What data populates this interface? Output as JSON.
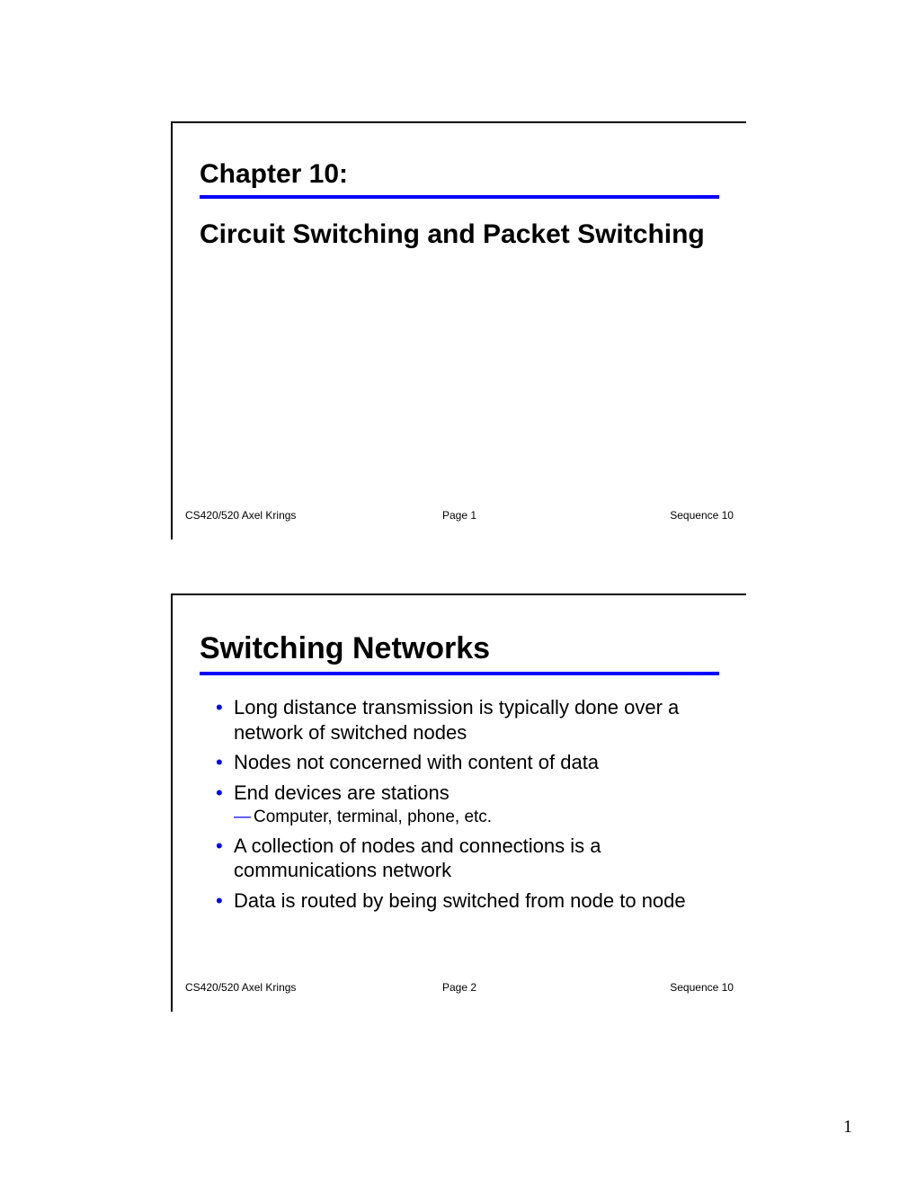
{
  "colors": {
    "rule": "#0000ff",
    "bullet": "#0000ff",
    "text": "#000000",
    "background": "#ffffff",
    "border": "#000000"
  },
  "slide1": {
    "chapter": "Chapter 10:",
    "title": "Circuit Switching and Packet Switching",
    "footer": {
      "left": "CS420/520 Axel Krings",
      "center": "Page 1",
      "right": "Sequence 10"
    }
  },
  "slide2": {
    "title": "Switching Networks",
    "bullets": [
      {
        "text": "Long distance transmission is typically done over a network of switched nodes"
      },
      {
        "text": "Nodes not concerned with content of data"
      },
      {
        "text": "End devices are stations",
        "sub": "Computer, terminal, phone, etc."
      },
      {
        "text": "A collection of nodes and connections is a communications network"
      },
      {
        "text": "Data is routed by being switched from node to node"
      }
    ],
    "footer": {
      "left": "CS420/520 Axel Krings",
      "center": "Page 2",
      "right": "Sequence 10"
    }
  },
  "pageNumber": "1"
}
